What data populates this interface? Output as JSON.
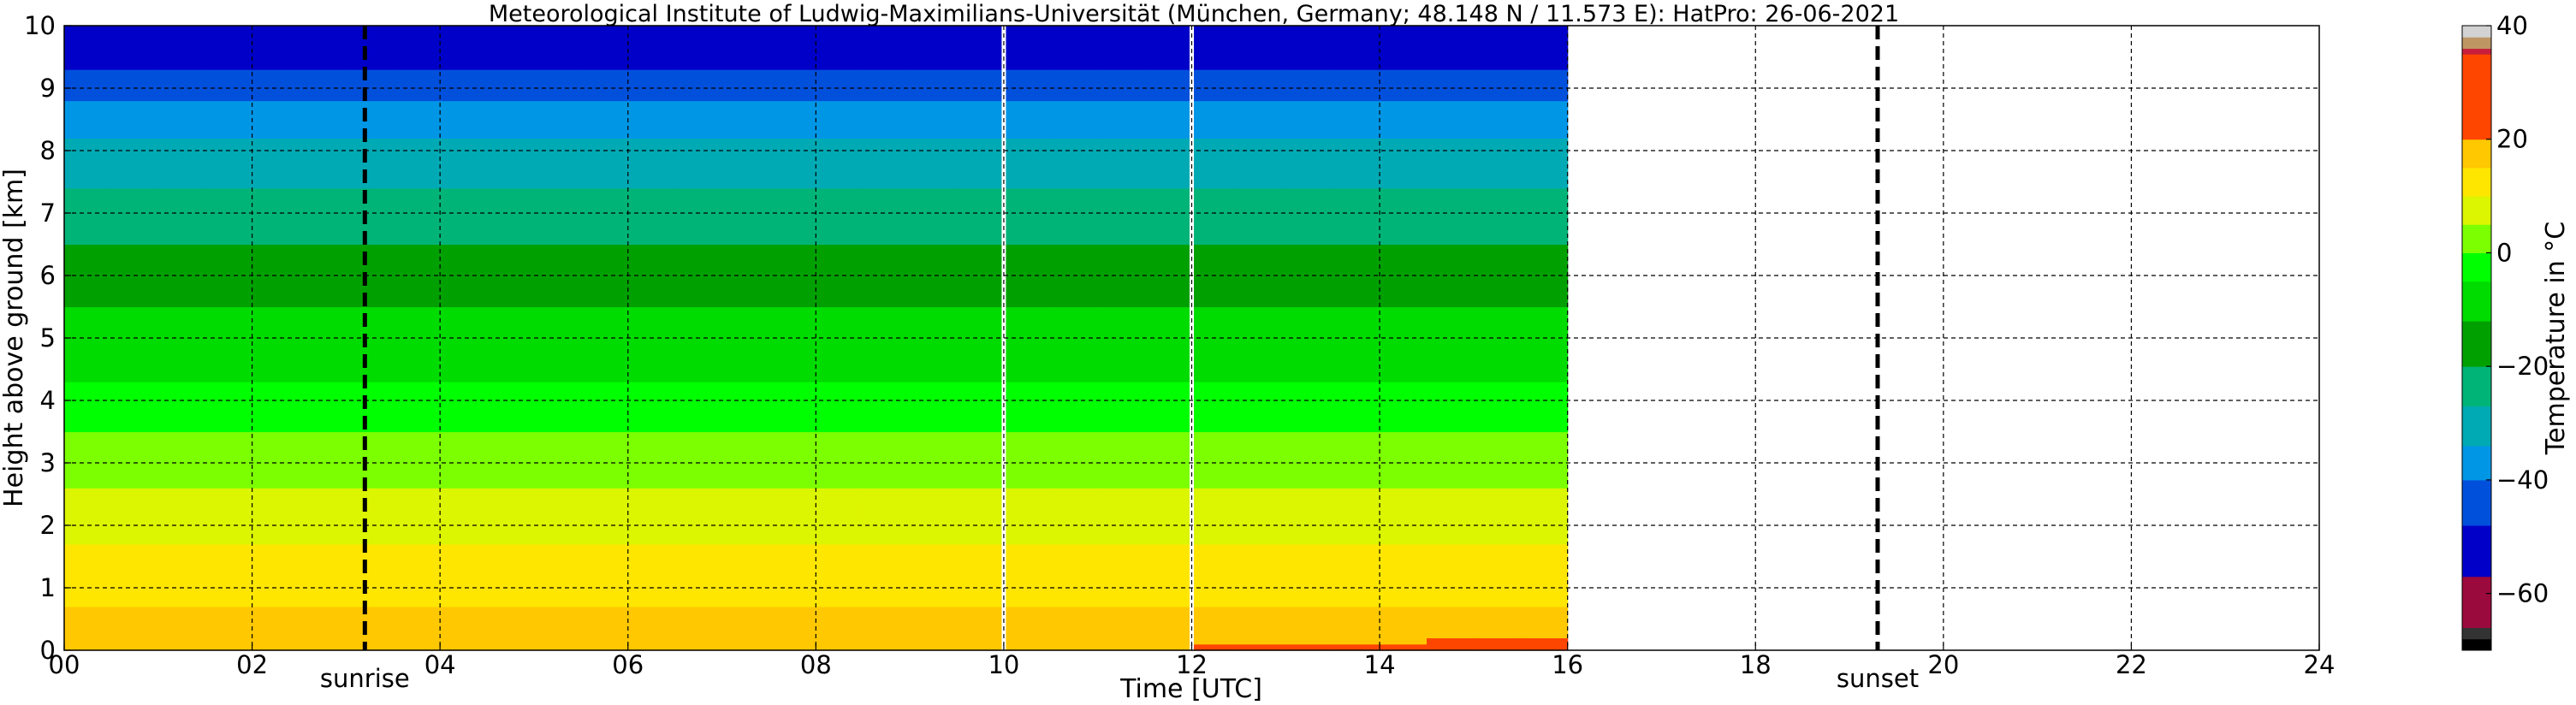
{
  "chart_data": {
    "type": "heatmap",
    "title": "Meteorological Institute of Ludwig-Maximilians-Universität (München, Germany; 48.148 N / 11.573 E):    HatPro: 26-06-2021",
    "xlabel": "Time [UTC]",
    "ylabel": "Height above ground [km]",
    "xlim": [
      0,
      24
    ],
    "ylim": [
      0,
      10
    ],
    "x_ticks": [
      "00",
      "02",
      "04",
      "06",
      "08",
      "10",
      "12",
      "14",
      "16",
      "18",
      "20",
      "22",
      "24"
    ],
    "x_tick_values": [
      0,
      2,
      4,
      6,
      8,
      10,
      12,
      14,
      16,
      18,
      20,
      22,
      24
    ],
    "y_ticks": [
      "0",
      "1",
      "2",
      "3",
      "4",
      "5",
      "6",
      "7",
      "8",
      "9",
      "10"
    ],
    "y_tick_values": [
      0,
      1,
      2,
      3,
      4,
      5,
      6,
      7,
      8,
      9,
      10
    ],
    "grid": true,
    "data_time_range": [
      0,
      16
    ],
    "data_gaps": [
      10,
      12
    ],
    "annotations": [
      {
        "text": "sunrise",
        "x": 3.2
      },
      {
        "text": "sunset",
        "x": 19.3
      }
    ],
    "colorbar": {
      "label": "Temperature in °C",
      "range": [
        -70,
        40
      ],
      "ticks": [
        "40",
        "20",
        "0",
        "−20",
        "−40",
        "−60"
      ],
      "tick_values": [
        40,
        20,
        0,
        -20,
        -40,
        -60
      ],
      "colors": [
        {
          "from": -70,
          "to": -68,
          "color": "#000000"
        },
        {
          "from": -68,
          "to": -66,
          "color": "#333333"
        },
        {
          "from": -66,
          "to": -57,
          "color": "#9b0a3c"
        },
        {
          "from": -57,
          "to": -48,
          "color": "#0000c8"
        },
        {
          "from": -48,
          "to": -40,
          "color": "#0050dc"
        },
        {
          "from": -40,
          "to": -34,
          "color": "#0096e6"
        },
        {
          "from": -34,
          "to": -27,
          "color": "#00aab4"
        },
        {
          "from": -27,
          "to": -20,
          "color": "#00b478"
        },
        {
          "from": -20,
          "to": -12,
          "color": "#00a000"
        },
        {
          "from": -12,
          "to": -5,
          "color": "#00dc00"
        },
        {
          "from": -5,
          "to": 0,
          "color": "#00ff00"
        },
        {
          "from": 0,
          "to": 5,
          "color": "#7cff00"
        },
        {
          "from": 5,
          "to": 10,
          "color": "#dcf500"
        },
        {
          "from": 10,
          "to": 15,
          "color": "#ffe600"
        },
        {
          "from": 15,
          "to": 20,
          "color": "#ffc800"
        },
        {
          "from": 20,
          "to": 35,
          "color": "#ff4600"
        },
        {
          "from": 35,
          "to": 36,
          "color": "#c81e3c"
        },
        {
          "from": 36,
          "to": 38,
          "color": "#be9664"
        },
        {
          "from": 38,
          "to": 40,
          "color": "#d2d2d2"
        }
      ]
    },
    "temperature_profile_km_degC": {
      "heights": [
        0,
        0.5,
        1,
        1.5,
        2,
        2.5,
        3,
        3.5,
        4,
        4.5,
        5,
        5.5,
        6,
        6.5,
        7,
        7.5,
        8,
        8.5,
        9,
        9.3,
        10
      ],
      "early_0_10": [
        18,
        16,
        13,
        11,
        9,
        6,
        2,
        0,
        -3,
        -6,
        -9,
        -12,
        -16,
        -20,
        -24,
        -28,
        -32,
        -37,
        -42,
        -48,
        -52
      ],
      "afternoon_12_16": [
        22,
        17,
        13,
        11,
        9,
        6,
        2,
        0,
        -3,
        -6,
        -9,
        -12,
        -16,
        -20,
        -24,
        -28,
        -32,
        -37,
        -42,
        -48,
        -52
      ]
    }
  }
}
